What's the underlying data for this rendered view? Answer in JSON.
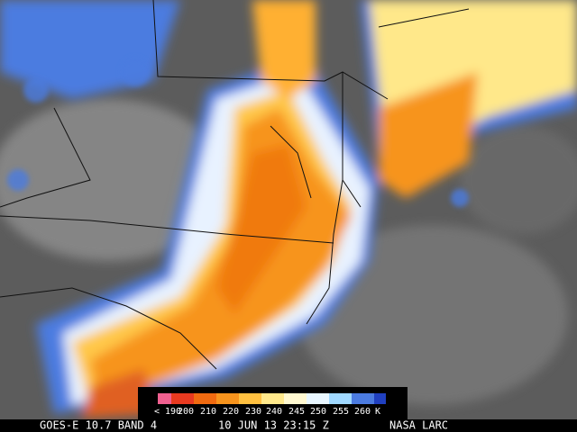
{
  "colorbar": {
    "labels": [
      "< 190",
      "200",
      "210",
      "220",
      "230",
      "240",
      "245",
      "250",
      "255",
      "260"
    ],
    "unit": "K"
  },
  "caption": {
    "satellite": "GOES-E 10.7 BAND 4",
    "datetime": "10 JUN 13 23:15 Z",
    "source": "NASA LARC"
  }
}
